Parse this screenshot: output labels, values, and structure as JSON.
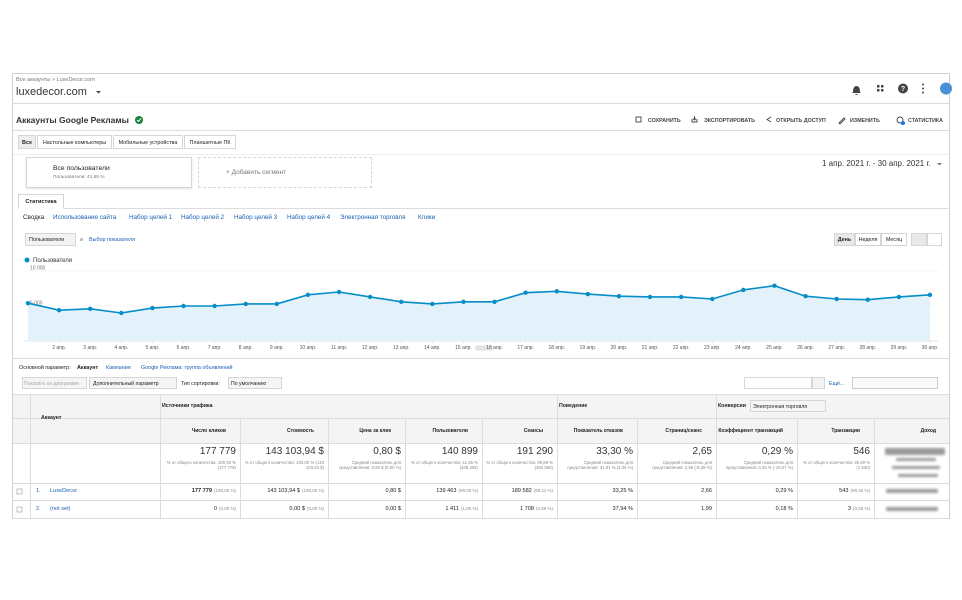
{
  "header": {
    "breadcrumb": "Все аккаунты > LuxeDecor.com",
    "property": "luxedecor.com"
  },
  "report": {
    "title": "Аккаунты Google Рекламы",
    "actions": [
      "СОХРАНИТЬ",
      "ЭКСПОРТИРОВАТЬ",
      "ОТКРЫТЬ ДОСТУП",
      "ИЗМЕНИТЬ",
      "СТАТИСТИКА"
    ]
  },
  "device_tabs": [
    "Все",
    "Настольные компьютеры",
    "Мобильные устройства",
    "Планшетные ПК"
  ],
  "segment": {
    "name": "Все пользователи",
    "share": "Пользователи: 41,65 %",
    "add": "+ Добавить сегмент"
  },
  "date_range": "1 апр. 2021 г. - 30 апр. 2021 г.",
  "tab": "Статистика",
  "subtabs": [
    "Сводка",
    "Использование сайта",
    "Набор целей 1",
    "Набор целей 2",
    "Набор целей 3",
    "Набор целей 4",
    "Электронная торговля",
    "Клики"
  ],
  "chart_controls": {
    "metric": "Пользователи",
    "and": "и",
    "select": "Выбор показателя",
    "periods": [
      "День",
      "Неделя",
      "Месяц"
    ]
  },
  "chart_data": {
    "type": "line",
    "categories": [
      null,
      "2 апр.",
      "3 апр.",
      "4 апр.",
      "5 апр.",
      "6 апр.",
      "7 апр.",
      "8 апр.",
      "9 апр.",
      "10 апр.",
      "11 апр.",
      "12 апр.",
      "13 апр.",
      "14 апр.",
      "15 апр.",
      "16 апр.",
      "17 апр.",
      "18 апр.",
      "19 апр.",
      "20 апр.",
      "21 апр.",
      "22 апр.",
      "23 апр.",
      "24 апр.",
      "25 апр.",
      "26 апр.",
      "27 апр.",
      "28 апр.",
      "29 апр.",
      "30 апр."
    ],
    "series": [
      {
        "name": "Пользователи",
        "color": "#058dc7",
        "values": [
          5400,
          4400,
          4600,
          4000,
          4700,
          5000,
          5000,
          5300,
          5300,
          6600,
          7000,
          6300,
          5600,
          5300,
          5600,
          5600,
          6900,
          7100,
          6700,
          6400,
          6300,
          6300,
          6000,
          7300,
          7900,
          6400,
          6000,
          5900,
          6300,
          6600
        ]
      }
    ],
    "ylim": [
      0,
      10000
    ],
    "yticks": [
      {
        "value": 5000,
        "label": "5 000"
      },
      {
        "value": 10000,
        "label": "10 000"
      }
    ],
    "grid": true
  },
  "dimension": {
    "label": "Основной параметр:",
    "options": [
      "Аккаунт",
      "Кампания",
      "Google Реклама: группа объявлений"
    ]
  },
  "table_controls": {
    "plot": "Показать на диаграмме",
    "secondary": "Дополнительный параметр",
    "sort_label": "Тип сортировки:",
    "sort": "По умолчанию",
    "more": "Ещё..."
  },
  "table": {
    "groups": [
      "Источники трафика",
      "Поведение",
      "Конверсии"
    ],
    "conversion_select": "Электронная торговля",
    "columns": [
      "Аккаунт",
      "Число кликов",
      "Стоимость",
      "Цена за клик",
      "Пользователи",
      "Сеансы",
      "Показатель отказов",
      "Страниц/сеанс",
      "Коэффициент транзакций",
      "Транзакции",
      "Доход"
    ],
    "totals": [
      {
        "value": "177 779",
        "note": "% от общего количества: 100,00 % (177 779)"
      },
      {
        "value": "143 103,94 $",
        "note": "% от общего количества: 100,00 % (143 103,94 $)"
      },
      {
        "value": "0,80 $",
        "note": "Средний показатель для представления: 0,80 $ (0,00 %)"
      },
      {
        "value": "140 899",
        "note": "% от общего количества: 41,65 % (338 308)"
      },
      {
        "value": "191 290",
        "note": "% от общего количества: 39,68 % (482 050)"
      },
      {
        "value": "33,30 %",
        "note": "Средний показатель для представления: 31,91 % (4,35 %)"
      },
      {
        "value": "2,65",
        "note": "Средний показатель для представления: 2,89 (-8,38 %)"
      },
      {
        "value": "0,29 %",
        "note": "Средний показатель для представления: 0,32 % (-10,07 %)"
      },
      {
        "value": "546",
        "note": "% от общего количества: 35,69 % (1 530)"
      }
    ],
    "rows": [
      {
        "index": "1.",
        "account": "LuxeDecor",
        "cells": [
          {
            "value": "177 779",
            "share": "(100,00 %)"
          },
          {
            "value": "143 103,94 $",
            "share": "(100,00 %)"
          },
          {
            "value": "0,80 $"
          },
          {
            "value": "139 463",
            "share": "(99,00 %)"
          },
          {
            "value": "189 582",
            "share": "(99,11 %)"
          },
          {
            "value": "33,25 %"
          },
          {
            "value": "2,66"
          },
          {
            "value": "0,29 %"
          },
          {
            "value": "543",
            "share": "(99,45 %)"
          }
        ]
      },
      {
        "index": "2.",
        "account": "(not set)",
        "cells": [
          {
            "value": "0",
            "share": "(0,00 %)"
          },
          {
            "value": "0,00 $",
            "share": "(0,00 %)"
          },
          {
            "value": "0,00 $"
          },
          {
            "value": "1 411",
            "share": "(1,00 %)"
          },
          {
            "value": "1 708",
            "share": "(0,89 %)"
          },
          {
            "value": "37,94 %"
          },
          {
            "value": "1,99"
          },
          {
            "value": "0,18 %"
          },
          {
            "value": "3",
            "share": "(0,55 %)"
          }
        ]
      }
    ]
  }
}
